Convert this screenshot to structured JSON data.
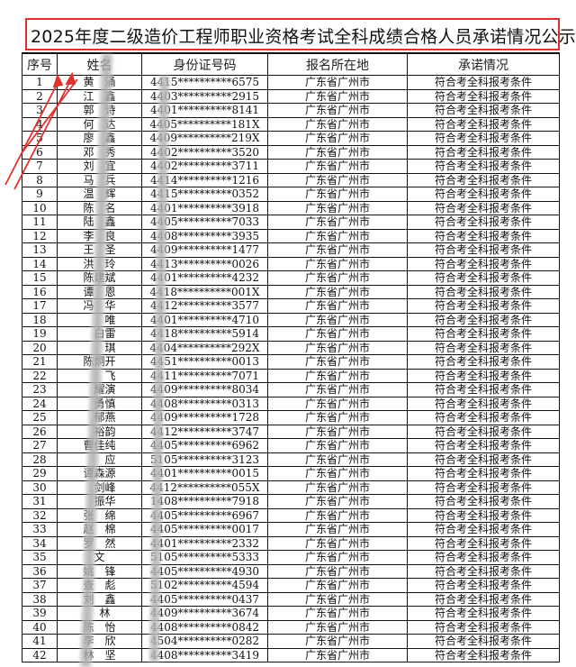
{
  "title": "2025年度二级造价工程师职业资格考试全科成绩合格人员承诺情况公示",
  "headers": [
    "序号",
    "姓名",
    "身份证号码",
    "报名所在地",
    "承诺情况"
  ],
  "annotation_color": "#e0312c",
  "rows": [
    [
      "1",
      "黄　涌",
      "4415**********6575",
      "广东省广州市",
      "符合考全科报考条件"
    ],
    [
      "2",
      "江　鑫",
      "4403**********2915",
      "广东省广州市",
      "符合考全科报考条件"
    ],
    [
      "3",
      "郭　诗",
      "4401**********8141",
      "广东省广州市",
      "符合考全科报考条件"
    ],
    [
      "4",
      "何　达",
      "4405**********181X",
      "广东省广州市",
      "符合考全科报考条件"
    ],
    [
      "5",
      "廖　鑫",
      "4409**********219X",
      "广东省广州市",
      "符合考全科报考条件"
    ],
    [
      "6",
      "邓　秀",
      "4402**********3520",
      "广东省广州市",
      "符合考全科报考条件"
    ],
    [
      "7",
      "刘　宜",
      "4402**********3711",
      "广东省广州市",
      "符合考全科报考条件"
    ],
    [
      "8",
      "马　兵",
      "4414**********1216",
      "广东省广州市",
      "符合考全科报考条件"
    ],
    [
      "9",
      "温　辉",
      "4415**********0352",
      "广东省广州市",
      "符合考全科报考条件"
    ],
    [
      "10",
      "陈　名",
      "4401**********3918",
      "广东省广州市",
      "符合考全科报考条件"
    ],
    [
      "11",
      "陆　鑫",
      "4405**********7033",
      "广东省广州市",
      "符合考全科报考条件"
    ],
    [
      "12",
      "李　良",
      "4408**********3935",
      "广东省广州市",
      "符合考全科报考条件"
    ],
    [
      "13",
      "王　圣",
      "4409**********1477",
      "广东省广州市",
      "符合考全科报考条件"
    ],
    [
      "14",
      "洪　玲",
      "4413**********0026",
      "广东省广州市",
      "符合考全科报考条件"
    ],
    [
      "15",
      "陈建斌",
      "4401**********4232",
      "广东省广州市",
      "符合考全科报考条件"
    ],
    [
      "16",
      "谭　恩",
      "4418**********001X",
      "广东省广州市",
      "符合考全科报考条件"
    ],
    [
      "17",
      "冯　华",
      "4412**********3577",
      "广东省广州市",
      "符合考全科报考条件"
    ],
    [
      "18",
      "　　唯",
      "4401**********4710",
      "广东省广州市",
      "符合考全科报考条件"
    ],
    [
      "19",
      "　白雷",
      "4418**********5914",
      "广东省广州市",
      "符合考全科报考条件"
    ],
    [
      "20",
      "　　琪",
      "4404**********292X",
      "广东省广州市",
      "符合考全科报考条件"
    ],
    [
      "21",
      "陈炯开",
      "4451**********0013",
      "广东省广州市",
      "符合考全科报考条件"
    ],
    [
      "22",
      "　　飞",
      "4411**********7071",
      "广东省广州市",
      "符合考全科报考条件"
    ],
    [
      "23",
      "　耀演",
      "4409**********8034",
      "广东省广州市",
      "符合考全科报考条件"
    ],
    [
      "24",
      "　勇慎",
      "4408**********0313",
      "广东省广州市",
      "符合考全科报考条件"
    ],
    [
      "25",
      "　郁燕",
      "4409**********1728",
      "广东省广州市",
      "符合考全科报考条件"
    ],
    [
      "26",
      "　裕韵",
      "4412**********3747",
      "广东省广州市",
      "符合考全科报考条件"
    ],
    [
      "27",
      "曹佳纯",
      "4405**********6962",
      "广东省广州市",
      "符合考全科报考条件"
    ],
    [
      "28",
      "　　应",
      "5105**********3123",
      "广东省广州市",
      "符合考全科报考条件"
    ],
    [
      "29",
      "谭森源",
      "4401**********0015",
      "广东省广州市",
      "符合考全科报考条件"
    ],
    [
      "30",
      "　剑峰",
      "4412**********055X",
      "广东省广州市",
      "符合考全科报考条件"
    ],
    [
      "31",
      "　振华",
      "1408**********7918",
      "广东省广州市",
      "符合考全科报考条件"
    ],
    [
      "32",
      "张　绵",
      "4405**********6967",
      "广东省广州市",
      "符合考全科报考条件"
    ],
    [
      "33",
      "赵　棉",
      "4405**********0017",
      "广东省广州市",
      "符合考全科报考条件"
    ],
    [
      "34",
      "罗　然",
      "4401**********2332",
      "广东省广州市",
      "符合考全科报考条件"
    ],
    [
      "35",
      "文　",
      "5105**********5333",
      "广东省广州市",
      "符合考全科报考条件"
    ],
    [
      "36",
      "姚　锋",
      "4405**********4930",
      "广东省广州市",
      "符合考全科报考条件"
    ],
    [
      "37",
      "查　彪",
      "5102**********4594",
      "广东省广州市",
      "符合考全科报考条件"
    ],
    [
      "38",
      "刘　鑫",
      "4405**********0437",
      "广东省广州市",
      "符合考全科报考条件"
    ],
    [
      "39",
      "　林",
      "4409**********3674",
      "广东省广州市",
      "符合考全科报考条件"
    ],
    [
      "40",
      "陈　怡",
      "4408**********0842",
      "广东省广州市",
      "符合考全科报考条件"
    ],
    [
      "41",
      "李　欣",
      "4504**********0282",
      "广东省广州市",
      "符合考全科报考条件"
    ],
    [
      "42",
      "林　坚",
      "4408**********3419",
      "广东省广州市",
      "符合考全科报考条件"
    ]
  ]
}
